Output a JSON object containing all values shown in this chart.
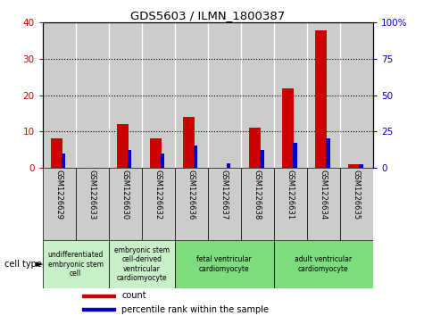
{
  "title": "GDS5603 / ILMN_1800387",
  "samples": [
    "GSM1226629",
    "GSM1226633",
    "GSM1226630",
    "GSM1226632",
    "GSM1226636",
    "GSM1226637",
    "GSM1226638",
    "GSM1226631",
    "GSM1226634",
    "GSM1226635"
  ],
  "counts": [
    8,
    0,
    12,
    8,
    14,
    0,
    11,
    22,
    38,
    1
  ],
  "percentiles": [
    9.5,
    0,
    12,
    9.5,
    15,
    3,
    12,
    17,
    20,
    2.5
  ],
  "ylim_left": [
    0,
    40
  ],
  "ylim_right": [
    0,
    100
  ],
  "yticks_left": [
    0,
    10,
    20,
    30,
    40
  ],
  "yticks_right": [
    0,
    25,
    50,
    75,
    100
  ],
  "cell_type_groups": [
    {
      "label": "undifferentiated\nembryonic stem\ncell",
      "start": 0,
      "end": 2,
      "color": "#c8f0c8"
    },
    {
      "label": "embryonic stem\ncell-derived\nventricular\ncardiomyocyte",
      "start": 2,
      "end": 4,
      "color": "#c8f0c8"
    },
    {
      "label": "fetal ventricular\ncardiomyocyte",
      "start": 4,
      "end": 7,
      "color": "#7ddc7d"
    },
    {
      "label": "adult ventricular\ncardiomyocyte",
      "start": 7,
      "end": 10,
      "color": "#7ddc7d"
    }
  ],
  "count_color": "#cc0000",
  "percentile_color": "#0000cc",
  "bar_bg_color": "#cccccc",
  "white": "#ffffff",
  "black": "#000000",
  "red_bar_width": 0.35,
  "blue_bar_width": 0.12
}
